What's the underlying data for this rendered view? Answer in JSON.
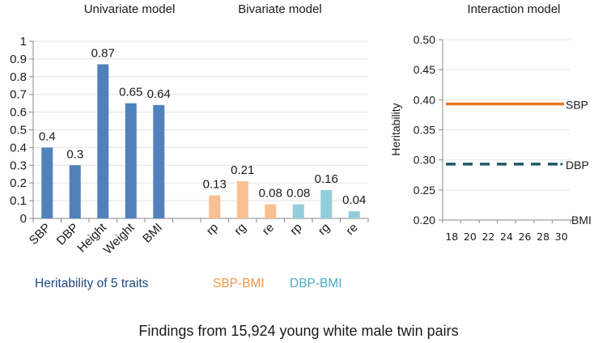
{
  "chart_data": [
    {
      "type": "bar",
      "titles": [
        "Univariate model",
        "Bivariate model"
      ],
      "categories": [
        "SBP",
        "DBP",
        "Height",
        "Weight",
        "BMI",
        "",
        "rp",
        "rg",
        "re",
        "rp",
        "rg",
        "re"
      ],
      "series": [
        {
          "name": "Heritability of 5 traits",
          "color": "#4F81BD",
          "values": [
            0.4,
            0.3,
            0.87,
            0.65,
            0.64,
            null,
            null,
            null,
            null,
            null,
            null,
            null
          ],
          "labels": [
            "0.4",
            "0.3",
            "0.87",
            "0.65",
            "0.64",
            "",
            "",
            "",
            "",
            "",
            "",
            ""
          ]
        },
        {
          "name": "SBP-BMI",
          "color": "#FAC090",
          "label_color": "#F79646",
          "values": [
            null,
            null,
            null,
            null,
            null,
            null,
            0.13,
            0.21,
            0.08,
            null,
            null,
            null
          ],
          "labels": [
            "",
            "",
            "",
            "",
            "",
            "",
            "0.13",
            "0.21",
            "0.08",
            "",
            "",
            ""
          ]
        },
        {
          "name": "DBP-BMI",
          "color": "#92CDDC",
          "label_color": "#4BACC6",
          "values": [
            null,
            null,
            null,
            null,
            null,
            null,
            null,
            null,
            null,
            0.08,
            0.16,
            0.04
          ],
          "labels": [
            "",
            "",
            "",
            "",
            "",
            "",
            "",
            "",
            "",
            "0.08",
            "0.16",
            "0.04"
          ]
        }
      ],
      "ylim": [
        0,
        1
      ],
      "yticks": [
        "0",
        "0.1",
        "0.2",
        "0.3",
        "0.4",
        "0.5",
        "0.6",
        "0.7",
        "0.8",
        "0.9",
        "1"
      ],
      "grid": true,
      "group_labels": [
        {
          "text": "Heritability  of 5 traits",
          "color": "#1F497D"
        },
        {
          "text": "SBP-BMI",
          "color": "#F79646"
        },
        {
          "text": "DBP-BMI",
          "color": "#4BACC6"
        }
      ]
    },
    {
      "type": "line",
      "title": "Interaction model",
      "ylabel": "Heritability",
      "xlabel": "BMI",
      "x": [
        17,
        31
      ],
      "xticks": [
        "18",
        "20",
        "22",
        "24",
        "26",
        "28",
        "30"
      ],
      "ylim": [
        0.2,
        0.5
      ],
      "yticks": [
        "0.20",
        "0.25",
        "0.30",
        "0.35",
        "0.40",
        "0.45",
        "0.50"
      ],
      "grid": true,
      "series": [
        {
          "name": "SBP",
          "values": [
            0.393,
            0.393
          ],
          "color": "#E87722",
          "style": "solid"
        },
        {
          "name": "DBP",
          "values": [
            0.293,
            0.293
          ],
          "color": "#215968",
          "style": "dashed"
        }
      ]
    }
  ],
  "footer": "Findings from 15,924 young white male twin pairs"
}
